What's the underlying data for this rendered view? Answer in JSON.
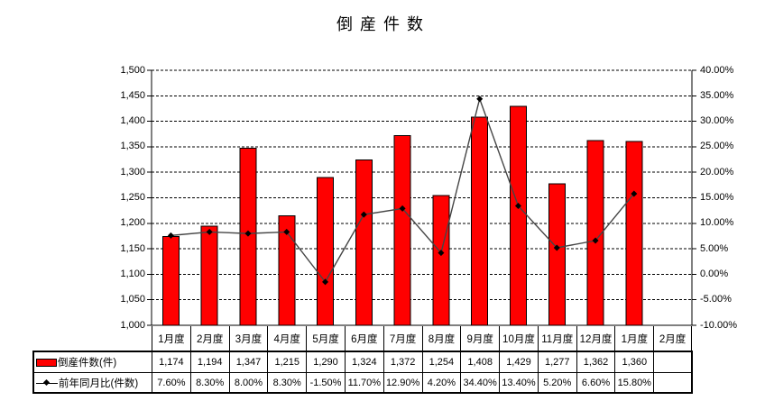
{
  "title": "倒産件数",
  "chart_data": {
    "type": "combo-bar-line",
    "title": "倒産件数",
    "categories": [
      "1月度",
      "2月度",
      "3月度",
      "4月度",
      "5月度",
      "6月度",
      "7月度",
      "8月度",
      "9月度",
      "10月度",
      "11月度",
      "12月度",
      "1月度",
      "2月度"
    ],
    "series": [
      {
        "name": "倒産件数(件)",
        "type": "bar",
        "axis": "left",
        "color": "#ff0000",
        "values": [
          1174,
          1194,
          1347,
          1215,
          1290,
          1324,
          1372,
          1254,
          1408,
          1429,
          1277,
          1362,
          1360,
          null
        ]
      },
      {
        "name": "前年同月比(件数)",
        "type": "line",
        "axis": "right",
        "color": "#454545",
        "marker": "diamond",
        "values": [
          7.6,
          8.3,
          8.0,
          8.3,
          -1.5,
          11.7,
          12.9,
          4.2,
          34.4,
          13.4,
          5.2,
          6.6,
          15.8,
          null
        ]
      }
    ],
    "left_axis": {
      "min": 1000,
      "max": 1500,
      "step": 50,
      "tick_labels": [
        "1,500",
        "1,450",
        "1,400",
        "1,350",
        "1,300",
        "1,250",
        "1,200",
        "1,150",
        "1,100",
        "1,050",
        "1,000"
      ]
    },
    "right_axis": {
      "min": -10,
      "max": 40,
      "step": 5,
      "tick_labels": [
        "40.00%",
        "35.00%",
        "30.00%",
        "25.00%",
        "20.00%",
        "15.00%",
        "10.00%",
        "5.00%",
        "0.00%",
        "-5.00%",
        "-10.00%"
      ]
    },
    "grid": "dashed-horizontal",
    "legend_position": "table-left"
  },
  "table": {
    "rows": [
      {
        "label": "倒産件数(件)",
        "swatch": "bar-swatch",
        "values": [
          "1,174",
          "1,194",
          "1,347",
          "1,215",
          "1,290",
          "1,324",
          "1,372",
          "1,254",
          "1,408",
          "1,429",
          "1,277",
          "1,362",
          "1,360",
          ""
        ]
      },
      {
        "label": "前年同月比(件数)",
        "swatch": "line-swatch",
        "values": [
          "7.60%",
          "8.30%",
          "8.00%",
          "8.30%",
          "-1.50%",
          "11.70%",
          "12.90%",
          "4.20%",
          "34.40%",
          "13.40%",
          "5.20%",
          "6.60%",
          "15.80%",
          ""
        ]
      }
    ]
  },
  "colors": {
    "background": "#ffffff",
    "bar_fill": "#ff0000",
    "bar_border": "#000000",
    "line": "#454545",
    "marker": "#000000",
    "grid": "#000000",
    "axis": "#000000",
    "table_border": "#000000",
    "text": "#000000"
  }
}
